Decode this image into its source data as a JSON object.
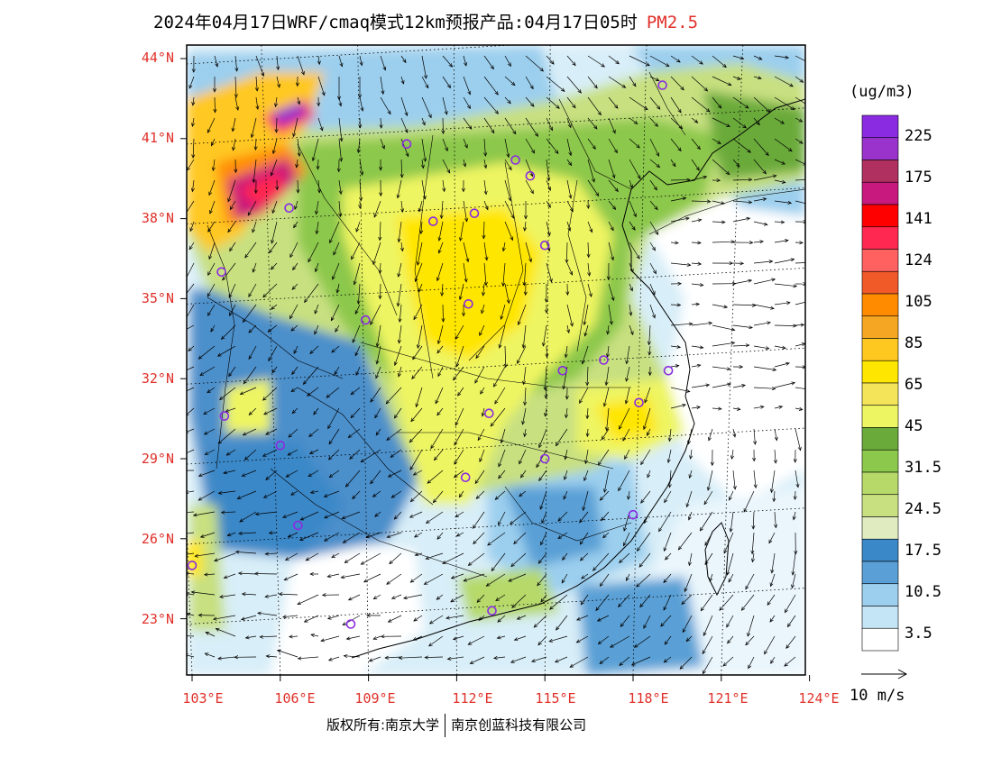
{
  "title": {
    "main": "2024年04月17日WRF/cmaq模式12km预报产品:04月17日05时",
    "pollutant": "PM2.5"
  },
  "lat_ticks": [
    "44°N",
    "41°N",
    "38°N",
    "35°N",
    "32°N",
    "29°N",
    "26°N",
    "23°N"
  ],
  "lon_ticks": [
    "103°E",
    "106°E",
    "109°E",
    "112°E",
    "115°E",
    "118°E",
    "121°E",
    "124°E"
  ],
  "colorbar": {
    "unit": "(ug/m3)",
    "colors": [
      "#8a2be2",
      "#9933cc",
      "#b03060",
      "#c8197e",
      "#ff0000",
      "#ff2850",
      "#ff6060",
      "#f05a28",
      "#ff8c00",
      "#f5a623",
      "#ffc820",
      "#ffe600",
      "#f3e45a",
      "#eef562",
      "#6aaa3a",
      "#8cc84b",
      "#b6d96a",
      "#c8e080",
      "#e0ecc0",
      "#3a88c8",
      "#5aa0d6",
      "#9ccfee",
      "#c4e5f5",
      "#ffffff"
    ],
    "labels": [
      "225",
      "175",
      "141",
      "124",
      "105",
      "85",
      "65",
      "45",
      "31.5",
      "24.5",
      "17.5",
      "10.5",
      "3.5"
    ]
  },
  "wind_legend": "10 m/s",
  "copyright": {
    "owner": "版权所有:南京大学",
    "company": "南京创蓝科技有限公司"
  },
  "cities": [
    [
      119.0,
      43.0
    ],
    [
      110.3,
      40.8
    ],
    [
      114.0,
      40.2
    ],
    [
      114.5,
      39.6
    ],
    [
      106.3,
      38.4
    ],
    [
      111.2,
      37.9
    ],
    [
      112.6,
      38.2
    ],
    [
      115.0,
      37.0
    ],
    [
      104.0,
      36.0
    ],
    [
      112.4,
      34.8
    ],
    [
      108.9,
      34.2
    ],
    [
      117.0,
      32.7
    ],
    [
      115.6,
      32.3
    ],
    [
      119.2,
      32.3
    ],
    [
      104.1,
      30.6
    ],
    [
      113.1,
      30.7
    ],
    [
      118.2,
      31.1
    ],
    [
      106.0,
      29.5
    ],
    [
      115.0,
      29.0
    ],
    [
      112.3,
      28.3
    ],
    [
      106.6,
      26.5
    ],
    [
      118.0,
      26.9
    ],
    [
      103.0,
      25.0
    ],
    [
      113.2,
      23.3
    ],
    [
      108.4,
      22.8
    ]
  ]
}
